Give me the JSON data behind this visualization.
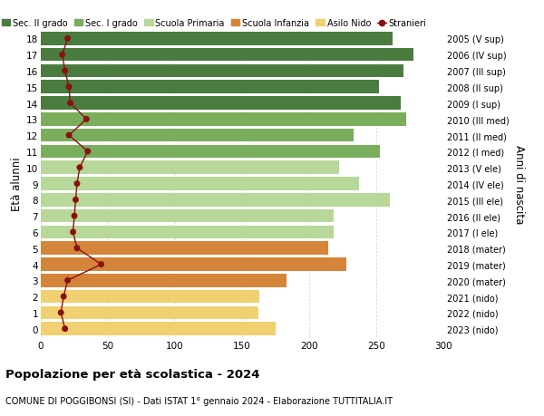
{
  "ages": [
    18,
    17,
    16,
    15,
    14,
    13,
    12,
    11,
    10,
    9,
    8,
    7,
    6,
    5,
    4,
    3,
    2,
    1,
    0
  ],
  "right_labels": [
    "2005 (V sup)",
    "2006 (IV sup)",
    "2007 (III sup)",
    "2008 (II sup)",
    "2009 (I sup)",
    "2010 (III med)",
    "2011 (II med)",
    "2012 (I med)",
    "2013 (V ele)",
    "2014 (IV ele)",
    "2015 (III ele)",
    "2016 (II ele)",
    "2017 (I ele)",
    "2018 (mater)",
    "2019 (mater)",
    "2020 (mater)",
    "2021 (nido)",
    "2022 (nido)",
    "2023 (nido)"
  ],
  "bar_values": [
    262,
    278,
    270,
    252,
    268,
    272,
    233,
    253,
    222,
    237,
    260,
    218,
    218,
    214,
    228,
    183,
    163,
    162,
    175
  ],
  "stranieri": [
    20,
    16,
    18,
    21,
    22,
    34,
    21,
    35,
    29,
    27,
    26,
    25,
    24,
    27,
    45,
    20,
    17,
    15,
    18
  ],
  "bar_colors": [
    "#4a7c3f",
    "#4a7c3f",
    "#4a7c3f",
    "#4a7c3f",
    "#4a7c3f",
    "#7aad5c",
    "#7aad5c",
    "#7aad5c",
    "#b8d89a",
    "#b8d89a",
    "#b8d89a",
    "#b8d89a",
    "#b8d89a",
    "#d4853a",
    "#d4853a",
    "#d4853a",
    "#f0d070",
    "#f0d070",
    "#f0d070"
  ],
  "legend_labels": [
    "Sec. II grado",
    "Sec. I grado",
    "Scuola Primaria",
    "Scuola Infanzia",
    "Asilo Nido",
    "Stranieri"
  ],
  "legend_colors": [
    "#4a7c3f",
    "#7aad5c",
    "#b8d89a",
    "#d4853a",
    "#f0d070",
    "#b22222"
  ],
  "ylabel": "Età alunni",
  "right_ylabel": "Anni di nascita",
  "title": "Popolazione per età scolastica - 2024",
  "subtitle": "COMUNE DI POGGIBONSI (SI) - Dati ISTAT 1° gennaio 2024 - Elaborazione TUTTITALIA.IT",
  "xlim": [
    0,
    300
  ],
  "xticks": [
    0,
    50,
    100,
    150,
    200,
    250,
    300
  ],
  "bar_height": 0.82,
  "bg_color": "#ffffff",
  "grid_color": "#d8d8d8",
  "stranieri_color": "#8b1010",
  "stranieri_marker_size": 5
}
